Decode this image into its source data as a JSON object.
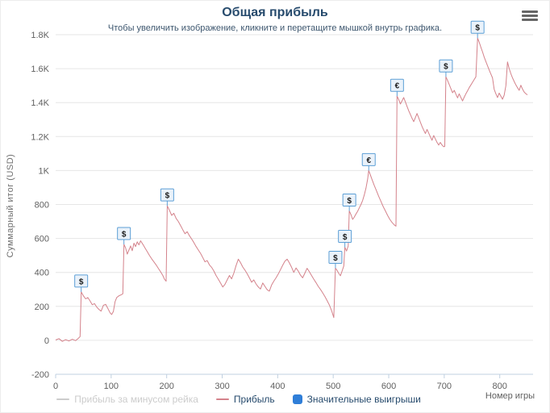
{
  "chart": {
    "title": "Общая прибыль",
    "subtitle": "Чтобы увеличить изображение, кликните и перетащите мышкой внутрь графика.",
    "y_axis_title": "Суммарный итог (USD)",
    "x_axis_title": "Номер игры"
  },
  "icons": {
    "export_menu": "hamburger-icon"
  },
  "colors": {
    "title": "#274b6d",
    "subtitle": "#3e576f",
    "profit_line": "#d4828b",
    "grid": "#e6e6e6",
    "axis_line": "#c0d0e0",
    "tick_label": "#606060",
    "flag_fill": "#eaf2fa",
    "flag_border": "#5c9fd6",
    "flag_text": "#1a1a1a",
    "legend_disabled": "#cccccc",
    "wins_symbol": "#2f7ed8"
  },
  "legend": {
    "items": [
      {
        "label": "Прибыль за минусом рейка",
        "type": "line",
        "color": "#cccccc",
        "disabled": true
      },
      {
        "label": "Прибыль",
        "type": "line",
        "color": "#d4828b",
        "disabled": false
      },
      {
        "label": "Значительные выигрыши",
        "type": "square",
        "color": "#2f7ed8",
        "disabled": false
      }
    ]
  },
  "chart_data": {
    "type": "line",
    "title": "Общая прибыль",
    "subtitle": "Чтобы увеличить изображение, кликните и перетащите мышкой внутрь графика.",
    "xlabel": "Номер игры",
    "ylabel": "Суммарный итог (USD)",
    "xlim": [
      0,
      860
    ],
    "ylim": [
      -200,
      1800
    ],
    "grid": true,
    "legend_position": "bottom",
    "x_ticks": [
      0,
      100,
      200,
      300,
      400,
      500,
      600,
      700,
      800
    ],
    "y_ticks": [
      -200,
      0,
      200,
      400,
      600,
      800,
      1000,
      1200,
      1400,
      1600,
      1800
    ],
    "y_tick_labels": [
      "-200",
      "0",
      "200",
      "400",
      "600",
      "800",
      "1K",
      "1.2K",
      "1.4K",
      "1.6K",
      "1.8K"
    ],
    "series": [
      {
        "name": "Прибыль",
        "color": "#d4828b",
        "points": [
          [
            0,
            2
          ],
          [
            6,
            10
          ],
          [
            12,
            -6
          ],
          [
            18,
            4
          ],
          [
            24,
            -4
          ],
          [
            30,
            6
          ],
          [
            36,
            -2
          ],
          [
            41,
            12
          ],
          [
            44,
            22
          ],
          [
            46,
            285
          ],
          [
            50,
            262
          ],
          [
            54,
            244
          ],
          [
            58,
            252
          ],
          [
            62,
            232
          ],
          [
            66,
            210
          ],
          [
            70,
            216
          ],
          [
            74,
            196
          ],
          [
            78,
            182
          ],
          [
            82,
            172
          ],
          [
            86,
            206
          ],
          [
            90,
            212
          ],
          [
            94,
            188
          ],
          [
            98,
            162
          ],
          [
            101,
            152
          ],
          [
            104,
            170
          ],
          [
            107,
            228
          ],
          [
            110,
            252
          ],
          [
            114,
            262
          ],
          [
            118,
            268
          ],
          [
            121,
            274
          ],
          [
            123,
            565
          ],
          [
            126,
            545
          ],
          [
            129,
            508
          ],
          [
            132,
            532
          ],
          [
            135,
            556
          ],
          [
            138,
            528
          ],
          [
            141,
            572
          ],
          [
            144,
            552
          ],
          [
            147,
            580
          ],
          [
            150,
            562
          ],
          [
            153,
            586
          ],
          [
            157,
            566
          ],
          [
            161,
            544
          ],
          [
            165,
            522
          ],
          [
            169,
            500
          ],
          [
            173,
            480
          ],
          [
            177,
            462
          ],
          [
            181,
            444
          ],
          [
            185,
            424
          ],
          [
            189,
            404
          ],
          [
            193,
            382
          ],
          [
            196,
            360
          ],
          [
            199,
            348
          ],
          [
            201,
            792
          ],
          [
            205,
            766
          ],
          [
            209,
            736
          ],
          [
            213,
            748
          ],
          [
            217,
            718
          ],
          [
            221,
            700
          ],
          [
            225,
            676
          ],
          [
            229,
            652
          ],
          [
            233,
            628
          ],
          [
            237,
            640
          ],
          [
            241,
            616
          ],
          [
            245,
            596
          ],
          [
            249,
            576
          ],
          [
            253,
            552
          ],
          [
            257,
            532
          ],
          [
            261,
            512
          ],
          [
            265,
            488
          ],
          [
            269,
            462
          ],
          [
            273,
            470
          ],
          [
            277,
            444
          ],
          [
            281,
            430
          ],
          [
            285,
            408
          ],
          [
            289,
            382
          ],
          [
            293,
            360
          ],
          [
            297,
            338
          ],
          [
            301,
            314
          ],
          [
            305,
            330
          ],
          [
            309,
            356
          ],
          [
            313,
            382
          ],
          [
            317,
            362
          ],
          [
            321,
            396
          ],
          [
            325,
            440
          ],
          [
            329,
            478
          ],
          [
            333,
            458
          ],
          [
            337,
            432
          ],
          [
            341,
            414
          ],
          [
            345,
            392
          ],
          [
            349,
            368
          ],
          [
            353,
            342
          ],
          [
            357,
            356
          ],
          [
            361,
            332
          ],
          [
            365,
            314
          ],
          [
            369,
            302
          ],
          [
            373,
            338
          ],
          [
            377,
            318
          ],
          [
            381,
            298
          ],
          [
            385,
            290
          ],
          [
            389,
            326
          ],
          [
            393,
            348
          ],
          [
            397,
            368
          ],
          [
            401,
            390
          ],
          [
            405,
            416
          ],
          [
            409,
            442
          ],
          [
            413,
            466
          ],
          [
            417,
            478
          ],
          [
            421,
            456
          ],
          [
            425,
            430
          ],
          [
            429,
            400
          ],
          [
            433,
            426
          ],
          [
            437,
            408
          ],
          [
            441,
            384
          ],
          [
            445,
            368
          ],
          [
            449,
            396
          ],
          [
            453,
            424
          ],
          [
            457,
            404
          ],
          [
            461,
            382
          ],
          [
            465,
            360
          ],
          [
            469,
            340
          ],
          [
            473,
            318
          ],
          [
            477,
            300
          ],
          [
            481,
            280
          ],
          [
            485,
            258
          ],
          [
            489,
            234
          ],
          [
            493,
            208
          ],
          [
            497,
            176
          ],
          [
            501,
            134
          ],
          [
            504,
            425
          ],
          [
            507,
            412
          ],
          [
            510,
            394
          ],
          [
            513,
            380
          ],
          [
            516,
            408
          ],
          [
            519,
            438
          ],
          [
            521,
            548
          ],
          [
            524,
            526
          ],
          [
            527,
            556
          ],
          [
            529,
            762
          ],
          [
            532,
            740
          ],
          [
            535,
            712
          ],
          [
            538,
            726
          ],
          [
            541,
            744
          ],
          [
            544,
            760
          ],
          [
            547,
            780
          ],
          [
            550,
            800
          ],
          [
            553,
            824
          ],
          [
            556,
            856
          ],
          [
            559,
            896
          ],
          [
            562,
            950
          ],
          [
            564,
            1000
          ],
          [
            567,
            974
          ],
          [
            570,
            946
          ],
          [
            574,
            912
          ],
          [
            578,
            880
          ],
          [
            582,
            848
          ],
          [
            586,
            818
          ],
          [
            590,
            788
          ],
          [
            594,
            762
          ],
          [
            598,
            736
          ],
          [
            602,
            712
          ],
          [
            606,
            694
          ],
          [
            610,
            680
          ],
          [
            613,
            672
          ],
          [
            615,
            1438
          ],
          [
            618,
            1418
          ],
          [
            621,
            1392
          ],
          [
            624,
            1410
          ],
          [
            627,
            1430
          ],
          [
            630,
            1404
          ],
          [
            633,
            1378
          ],
          [
            636,
            1352
          ],
          [
            639,
            1330
          ],
          [
            642,
            1308
          ],
          [
            645,
            1288
          ],
          [
            648,
            1312
          ],
          [
            651,
            1336
          ],
          [
            654,
            1310
          ],
          [
            657,
            1284
          ],
          [
            660,
            1260
          ],
          [
            663,
            1238
          ],
          [
            666,
            1218
          ],
          [
            669,
            1242
          ],
          [
            672,
            1220
          ],
          [
            675,
            1198
          ],
          [
            678,
            1178
          ],
          [
            681,
            1206
          ],
          [
            684,
            1186
          ],
          [
            687,
            1166
          ],
          [
            690,
            1150
          ],
          [
            693,
            1166
          ],
          [
            696,
            1150
          ],
          [
            699,
            1140
          ],
          [
            701,
            1142
          ],
          [
            703,
            1552
          ],
          [
            706,
            1530
          ],
          [
            709,
            1506
          ],
          [
            712,
            1482
          ],
          [
            715,
            1458
          ],
          [
            718,
            1472
          ],
          [
            721,
            1450
          ],
          [
            724,
            1428
          ],
          [
            727,
            1452
          ],
          [
            730,
            1430
          ],
          [
            733,
            1410
          ],
          [
            736,
            1432
          ],
          [
            739,
            1452
          ],
          [
            742,
            1470
          ],
          [
            745,
            1488
          ],
          [
            748,
            1504
          ],
          [
            751,
            1520
          ],
          [
            754,
            1536
          ],
          [
            757,
            1552
          ],
          [
            760,
            1780
          ],
          [
            763,
            1756
          ],
          [
            766,
            1726
          ],
          [
            769,
            1698
          ],
          [
            772,
            1668
          ],
          [
            775,
            1642
          ],
          [
            778,
            1616
          ],
          [
            781,
            1592
          ],
          [
            784,
            1568
          ],
          [
            787,
            1546
          ],
          [
            790,
            1478
          ],
          [
            793,
            1452
          ],
          [
            796,
            1430
          ],
          [
            799,
            1456
          ],
          [
            802,
            1438
          ],
          [
            805,
            1420
          ],
          [
            808,
            1444
          ],
          [
            811,
            1500
          ],
          [
            814,
            1640
          ],
          [
            817,
            1600
          ],
          [
            820,
            1570
          ],
          [
            823,
            1546
          ],
          [
            826,
            1524
          ],
          [
            829,
            1504
          ],
          [
            832,
            1488
          ],
          [
            835,
            1472
          ],
          [
            838,
            1502
          ],
          [
            841,
            1480
          ],
          [
            844,
            1462
          ],
          [
            847,
            1452
          ],
          [
            850,
            1446
          ]
        ]
      }
    ],
    "flags": [
      {
        "x": 46,
        "y": 285,
        "label": "$"
      },
      {
        "x": 123,
        "y": 565,
        "label": "$"
      },
      {
        "x": 201,
        "y": 792,
        "label": "$"
      },
      {
        "x": 504,
        "y": 425,
        "label": "$"
      },
      {
        "x": 521,
        "y": 548,
        "label": "$"
      },
      {
        "x": 529,
        "y": 762,
        "label": "$"
      },
      {
        "x": 564,
        "y": 1000,
        "label": "€"
      },
      {
        "x": 615,
        "y": 1438,
        "label": "€"
      },
      {
        "x": 703,
        "y": 1552,
        "label": "$"
      },
      {
        "x": 760,
        "y": 1780,
        "label": "$"
      }
    ]
  }
}
